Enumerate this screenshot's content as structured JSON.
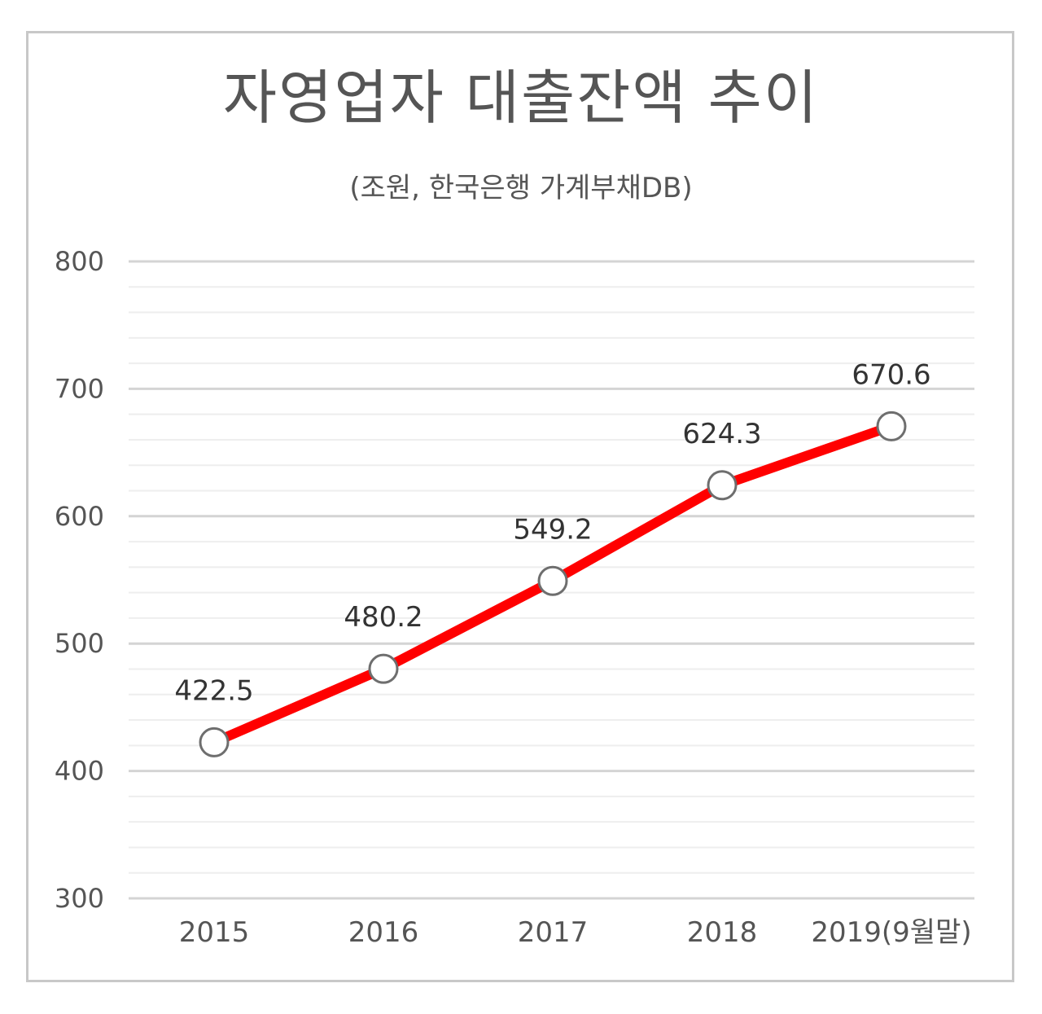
{
  "title": "자영업자 대출잔액 추이",
  "subtitle": "(조원, 한국은행 가계부채DB)",
  "colors": {
    "line": "#ff0000",
    "marker_fill": "#ffffff",
    "marker_stroke": "#6e6e6e",
    "major_grid": "#d4d4d4",
    "minor_grid": "#eeeeee",
    "text": "#555555",
    "frame": "#c8c8c8"
  },
  "chart_data": {
    "type": "line",
    "categories": [
      "2015",
      "2016",
      "2017",
      "2018",
      "2019(9월말)"
    ],
    "series": [
      {
        "values": [
          422.5,
          480.2,
          549.2,
          624.3,
          670.6
        ]
      }
    ],
    "data_labels": [
      "422.5",
      "480.2",
      "549.2",
      "624.3",
      "670.6"
    ],
    "ylim": [
      300,
      800
    ],
    "yticks": [
      300,
      400,
      500,
      600,
      700,
      800
    ],
    "minor_step": 20,
    "grid": true,
    "legend": "none",
    "markers": "open-circle"
  }
}
